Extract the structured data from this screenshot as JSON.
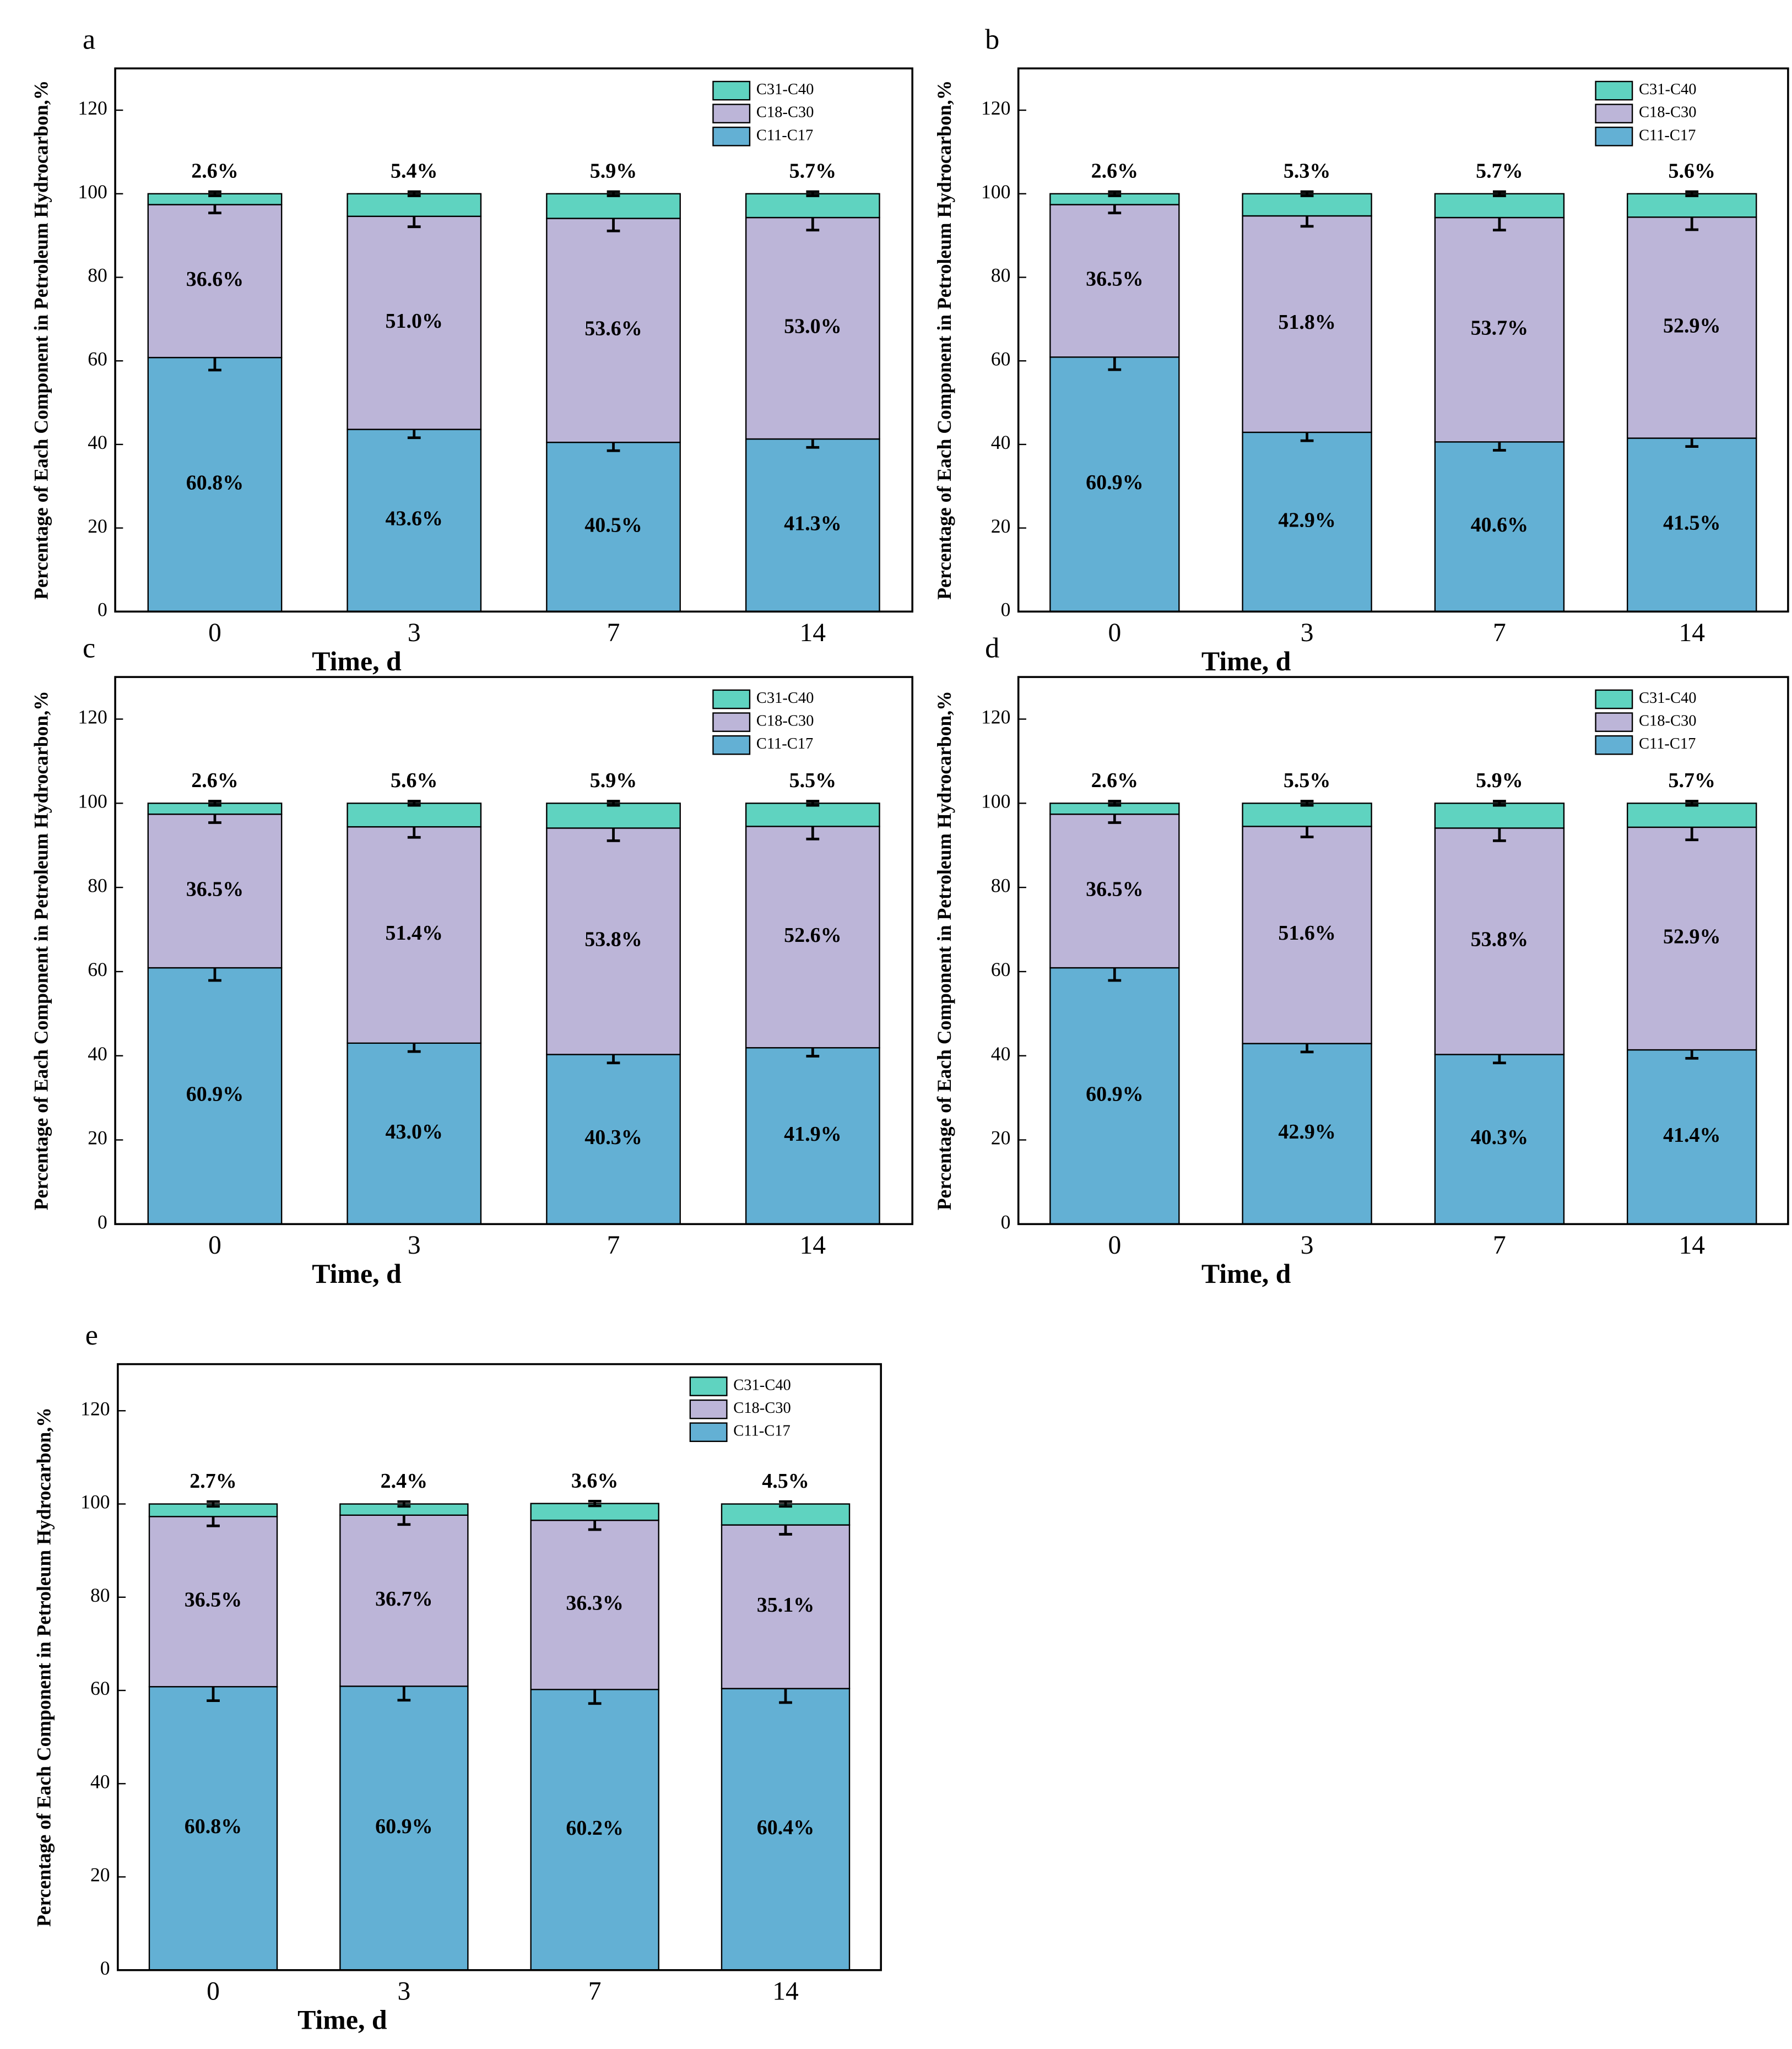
{
  "chart_data": [
    {
      "type": "bar",
      "stacked": true,
      "panel": "a",
      "categories": [
        "0",
        "3",
        "7",
        "14"
      ],
      "x_label": "Time, d",
      "y_label": "Percentage of Each Component in Petroleum Hydrocarbon,%",
      "ylim": [
        0,
        130
      ],
      "yticks": [
        0,
        20,
        40,
        60,
        80,
        100,
        120
      ],
      "legend": "upper right",
      "series": [
        {
          "name": "C11-C17",
          "color": "#63b0d4",
          "values": [
            60.8,
            43.6,
            40.5,
            41.3
          ],
          "value_labels": [
            "60.8%",
            "43.6%",
            "40.5%",
            "41.3%"
          ],
          "errors": [
            3,
            2,
            2,
            2
          ]
        },
        {
          "name": "C18-C30",
          "color": "#bcb5d8",
          "values": [
            36.6,
            51.0,
            53.6,
            53.0
          ],
          "value_labels": [
            "36.6%",
            "51.0%",
            "53.6%",
            "53.0%"
          ],
          "errors": [
            2,
            2.5,
            3,
            3
          ]
        },
        {
          "name": "C31-C40",
          "color": "#5fd3c0",
          "values": [
            2.6,
            5.4,
            5.9,
            5.7
          ],
          "value_labels": [
            "2.6%",
            "5.4%",
            "5.9%",
            "5.7%"
          ],
          "errors": [
            0.5,
            0.5,
            0.5,
            0.5
          ]
        }
      ]
    },
    {
      "type": "bar",
      "stacked": true,
      "panel": "b",
      "categories": [
        "0",
        "3",
        "7",
        "14"
      ],
      "x_label": "Time, d",
      "y_label": "Percentage of Each Component in Petroleum Hydrocarbon,%",
      "ylim": [
        0,
        130
      ],
      "yticks": [
        0,
        20,
        40,
        60,
        80,
        100,
        120
      ],
      "legend": "upper right",
      "series": [
        {
          "name": "C11-C17",
          "color": "#63b0d4",
          "values": [
            60.9,
            42.9,
            40.6,
            41.5
          ],
          "value_labels": [
            "60.9%",
            "42.9%",
            "40.6%",
            "41.5%"
          ],
          "errors": [
            3,
            2,
            2,
            2
          ]
        },
        {
          "name": "C18-C30",
          "color": "#bcb5d8",
          "values": [
            36.5,
            51.8,
            53.7,
            52.9
          ],
          "value_labels": [
            "36.5%",
            "51.8%",
            "53.7%",
            "52.9%"
          ],
          "errors": [
            2,
            2.5,
            3,
            3
          ]
        },
        {
          "name": "C31-C40",
          "color": "#5fd3c0",
          "values": [
            2.6,
            5.3,
            5.7,
            5.6
          ],
          "value_labels": [
            "2.6%",
            "5.3%",
            "5.7%",
            "5.6%"
          ],
          "errors": [
            0.5,
            0.5,
            0.5,
            0.5
          ]
        }
      ]
    },
    {
      "type": "bar",
      "stacked": true,
      "panel": "c",
      "categories": [
        "0",
        "3",
        "7",
        "14"
      ],
      "x_label": "Time, d",
      "y_label": "Percentage of Each Component in Petroleum Hydrocarbon,%",
      "ylim": [
        0,
        130
      ],
      "yticks": [
        0,
        20,
        40,
        60,
        80,
        100,
        120
      ],
      "legend": "upper right",
      "series": [
        {
          "name": "C11-C17",
          "color": "#63b0d4",
          "values": [
            60.9,
            43.0,
            40.3,
            41.9
          ],
          "value_labels": [
            "60.9%",
            "43.0%",
            "40.3%",
            "41.9%"
          ],
          "errors": [
            3,
            2,
            2,
            2
          ]
        },
        {
          "name": "C18-C30",
          "color": "#bcb5d8",
          "values": [
            36.5,
            51.4,
            53.8,
            52.6
          ],
          "value_labels": [
            "36.5%",
            "51.4%",
            "53.8%",
            "52.6%"
          ],
          "errors": [
            2,
            2.5,
            3,
            3
          ]
        },
        {
          "name": "C31-C40",
          "color": "#5fd3c0",
          "values": [
            2.6,
            5.6,
            5.9,
            5.5
          ],
          "value_labels": [
            "2.6%",
            "5.6%",
            "5.9%",
            "5.5%"
          ],
          "errors": [
            0.5,
            0.5,
            0.5,
            0.5
          ]
        }
      ]
    },
    {
      "type": "bar",
      "stacked": true,
      "panel": "d",
      "categories": [
        "0",
        "3",
        "7",
        "14"
      ],
      "x_label": "Time, d",
      "y_label": "Percentage of Each Component in Petroleum Hydrocarbon,%",
      "ylim": [
        0,
        130
      ],
      "yticks": [
        0,
        20,
        40,
        60,
        80,
        100,
        120
      ],
      "legend": "upper right",
      "series": [
        {
          "name": "C11-C17",
          "color": "#63b0d4",
          "values": [
            60.9,
            42.9,
            40.3,
            41.4
          ],
          "value_labels": [
            "60.9%",
            "42.9%",
            "40.3%",
            "41.4%"
          ],
          "errors": [
            3,
            2,
            2,
            2
          ]
        },
        {
          "name": "C18-C30",
          "color": "#bcb5d8",
          "values": [
            36.5,
            51.6,
            53.8,
            52.9
          ],
          "value_labels": [
            "36.5%",
            "51.6%",
            "53.8%",
            "52.9%"
          ],
          "errors": [
            2,
            2.5,
            3,
            3
          ]
        },
        {
          "name": "C31-C40",
          "color": "#5fd3c0",
          "values": [
            2.6,
            5.5,
            5.9,
            5.7
          ],
          "value_labels": [
            "2.6%",
            "5.5%",
            "5.9%",
            "5.7%"
          ],
          "errors": [
            0.5,
            0.5,
            0.5,
            0.5
          ]
        }
      ]
    },
    {
      "type": "bar",
      "stacked": true,
      "panel": "e",
      "categories": [
        "0",
        "3",
        "7",
        "14"
      ],
      "x_label": "Time, d",
      "y_label": "Percentage of Each Component in Petroleum Hydrocarbon,%",
      "ylim": [
        0,
        130
      ],
      "yticks": [
        0,
        20,
        40,
        60,
        80,
        100,
        120
      ],
      "legend": "upper right",
      "series": [
        {
          "name": "C11-C17",
          "color": "#63b0d4",
          "values": [
            60.8,
            60.9,
            60.2,
            60.4
          ],
          "value_labels": [
            "60.8%",
            "60.9%",
            "60.2%",
            "60.4%"
          ],
          "errors": [
            3,
            3,
            3,
            3
          ]
        },
        {
          "name": "C18-C30",
          "color": "#bcb5d8",
          "values": [
            36.5,
            36.7,
            36.3,
            35.1
          ],
          "value_labels": [
            "36.5%",
            "36.7%",
            "36.3%",
            "35.1%"
          ],
          "errors": [
            2,
            2,
            2,
            2
          ]
        },
        {
          "name": "C31-C40",
          "color": "#5fd3c0",
          "values": [
            2.7,
            2.4,
            3.6,
            4.5
          ],
          "value_labels": [
            "2.7%",
            "2.4%",
            "3.6%",
            "4.5%"
          ],
          "errors": [
            0.5,
            0.5,
            0.5,
            0.5
          ]
        }
      ]
    }
  ]
}
